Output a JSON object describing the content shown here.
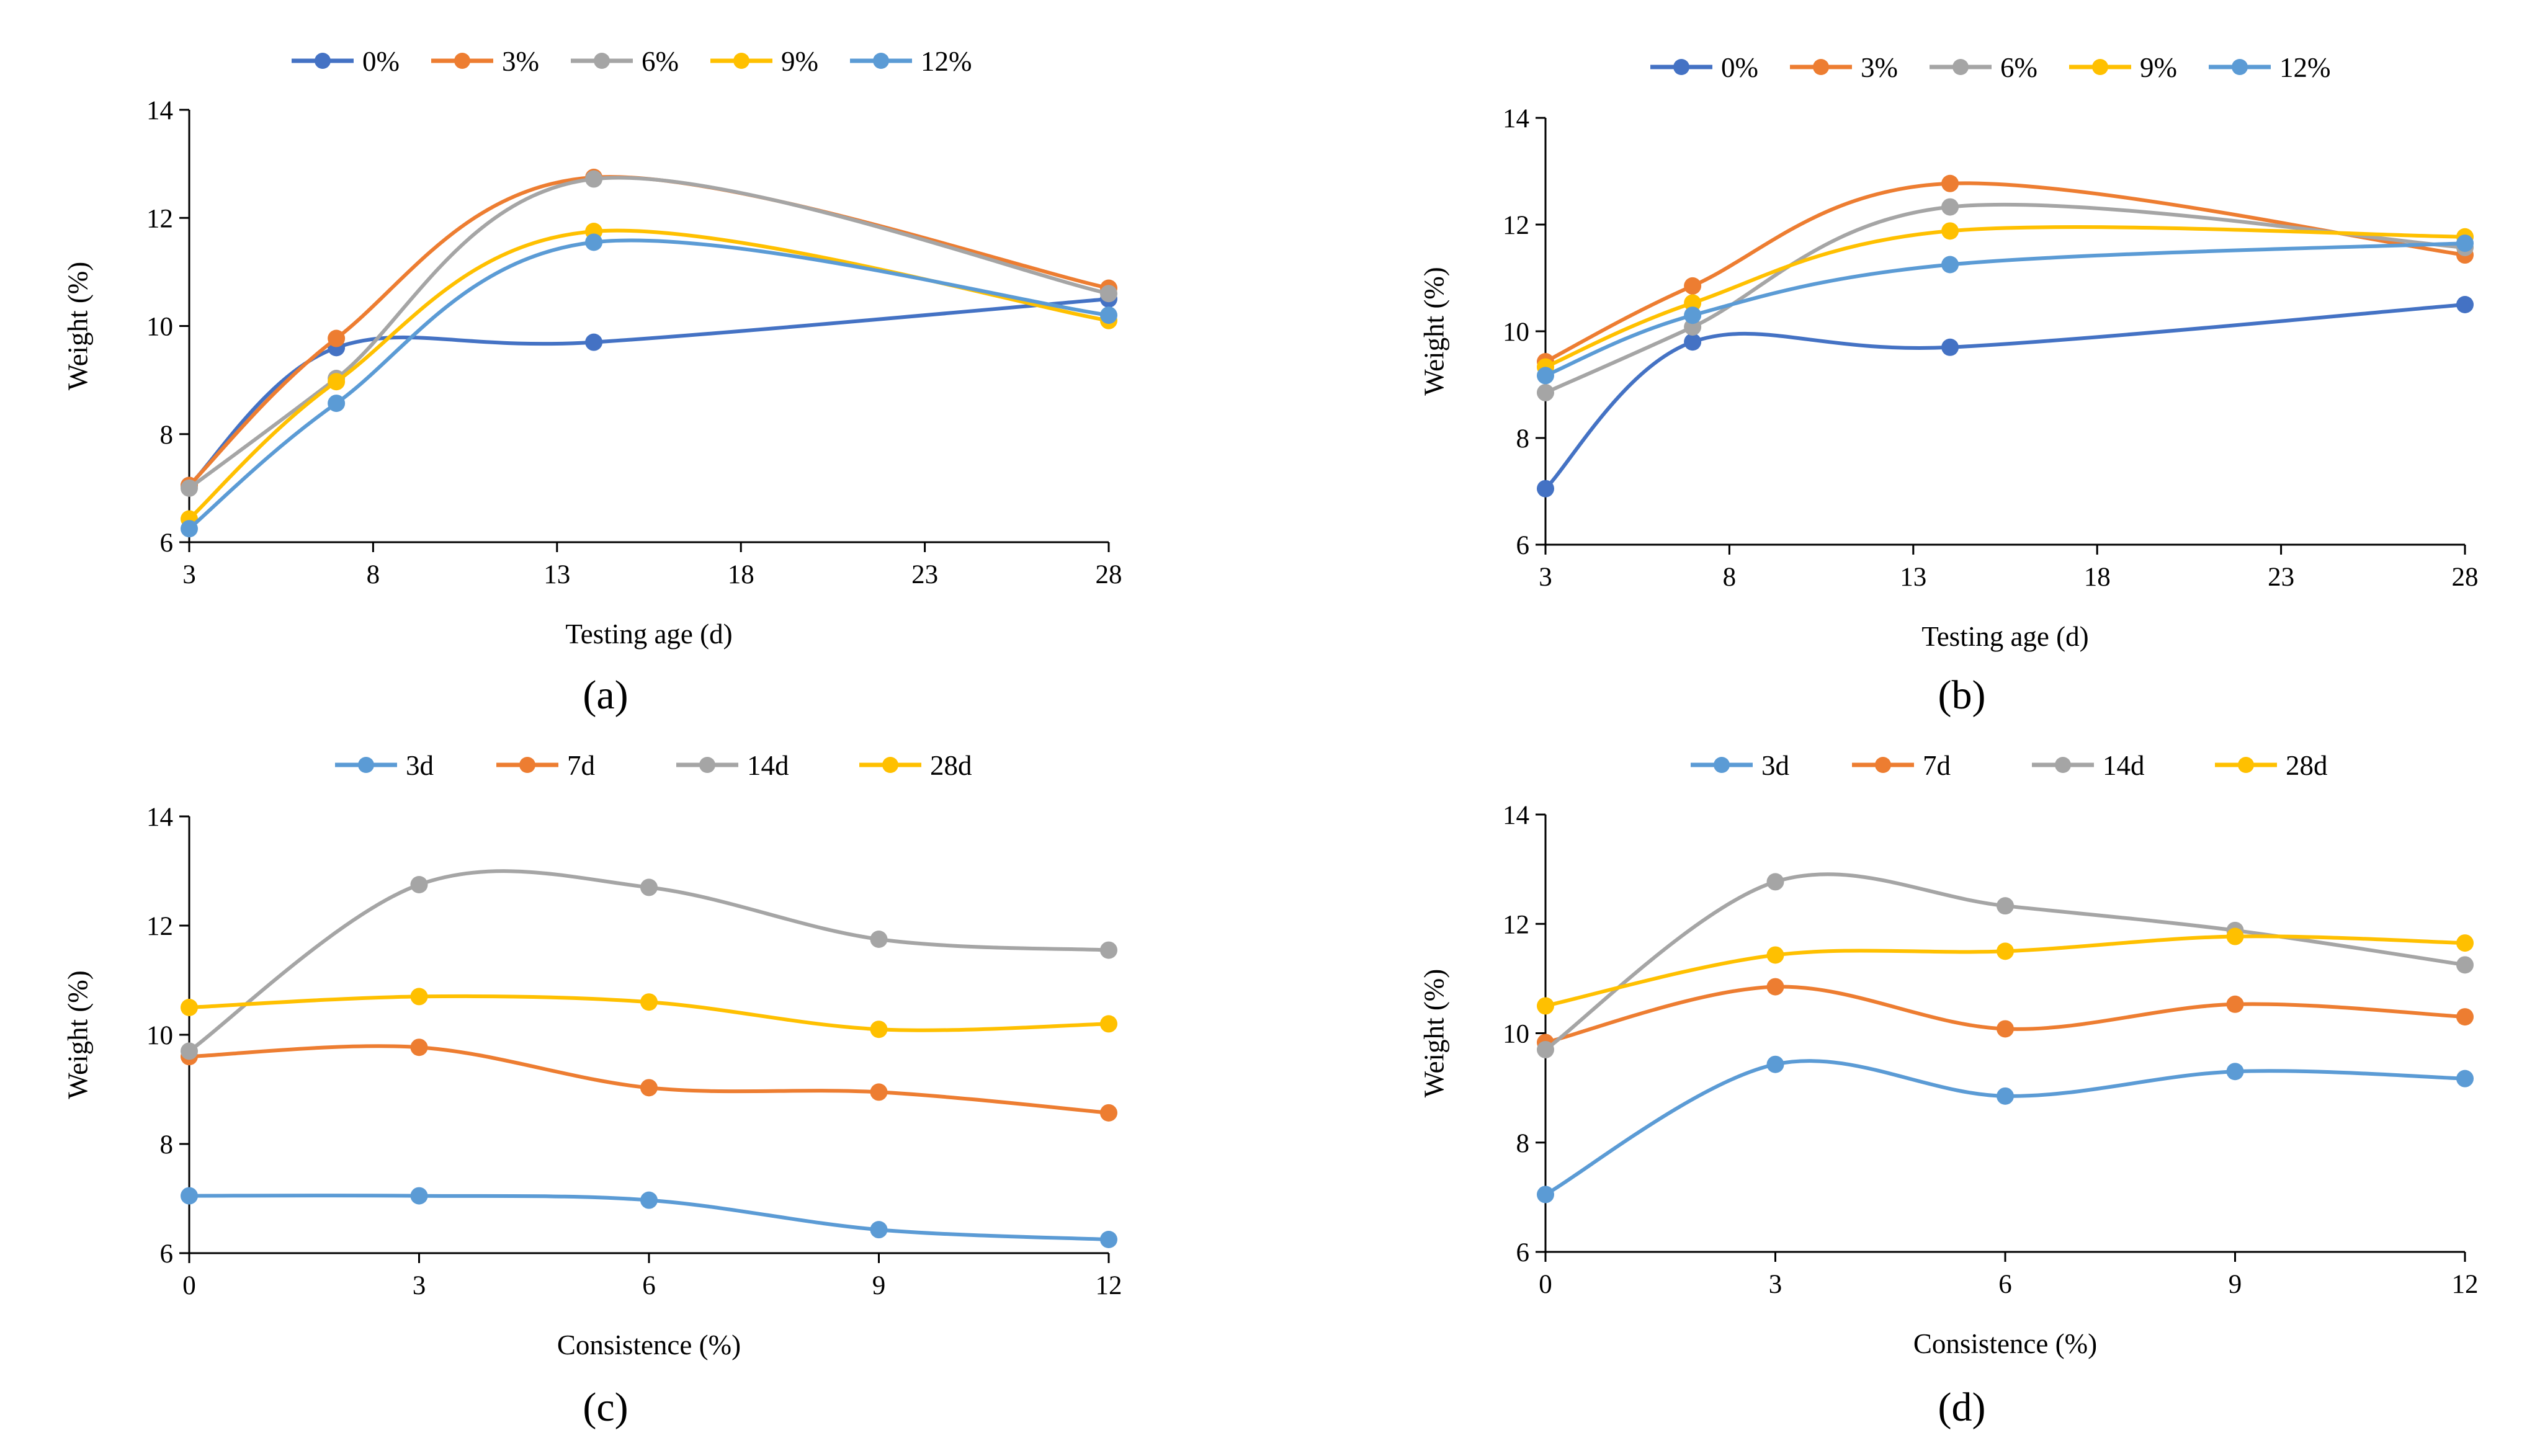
{
  "chart_data": [
    {
      "type": "line",
      "panel_label": "(a)",
      "xlabel": "Testing age (d)",
      "ylabel": "Weight (%)",
      "xlim": [
        3,
        28
      ],
      "ylim": [
        6,
        14
      ],
      "xticks": [
        3,
        8,
        13,
        18,
        23,
        28
      ],
      "yticks": [
        6,
        8,
        10,
        12,
        14
      ],
      "legend_position": "top",
      "x": [
        3,
        7,
        14,
        28
      ],
      "series": [
        {
          "name": "0%",
          "color": "#4472C4",
          "values": [
            7.05,
            9.6,
            9.7,
            10.5
          ]
        },
        {
          "name": "3%",
          "color": "#ED7D31",
          "values": [
            7.05,
            9.77,
            12.75,
            10.7
          ]
        },
        {
          "name": "6%",
          "color": "#A5A5A5",
          "values": [
            7.0,
            9.03,
            12.72,
            10.6
          ]
        },
        {
          "name": "9%",
          "color": "#FFC000",
          "values": [
            6.43,
            8.97,
            11.75,
            10.1
          ]
        },
        {
          "name": "12%",
          "color": "#5B9BD5",
          "values": [
            6.25,
            8.57,
            11.55,
            10.2
          ]
        }
      ]
    },
    {
      "type": "line",
      "panel_label": "(b)",
      "xlabel": "Testing age (d)",
      "ylabel": "Weight (%)",
      "xlim": [
        3,
        28
      ],
      "ylim": [
        6,
        14
      ],
      "xticks": [
        3,
        8,
        13,
        18,
        23,
        28
      ],
      "yticks": [
        6,
        8,
        10,
        12,
        14
      ],
      "legend_position": "top",
      "x": [
        3,
        7,
        14,
        28
      ],
      "series": [
        {
          "name": "0%",
          "color": "#4472C4",
          "values": [
            7.05,
            9.8,
            9.7,
            10.5
          ]
        },
        {
          "name": "3%",
          "color": "#ED7D31",
          "values": [
            9.43,
            10.85,
            12.77,
            11.43
          ]
        },
        {
          "name": "6%",
          "color": "#A5A5A5",
          "values": [
            8.85,
            10.08,
            12.33,
            11.57
          ]
        },
        {
          "name": "9%",
          "color": "#FFC000",
          "values": [
            9.33,
            10.53,
            11.88,
            11.77
          ]
        },
        {
          "name": "12%",
          "color": "#5B9BD5",
          "values": [
            9.17,
            10.3,
            11.25,
            11.65
          ]
        }
      ]
    },
    {
      "type": "line",
      "panel_label": "(c)",
      "xlabel": "Consistence (%)",
      "ylabel": "Weight (%)",
      "xlim": [
        0,
        12
      ],
      "ylim": [
        6,
        14
      ],
      "xticks": [
        0,
        3,
        6,
        9,
        12
      ],
      "yticks": [
        6,
        8,
        10,
        12,
        14
      ],
      "legend_position": "top",
      "x": [
        0,
        3,
        6,
        9,
        12
      ],
      "series": [
        {
          "name": "3d",
          "color": "#5B9BD5",
          "values": [
            7.05,
            7.05,
            6.97,
            6.43,
            6.25
          ]
        },
        {
          "name": "7d",
          "color": "#ED7D31",
          "values": [
            9.6,
            9.77,
            9.03,
            8.95,
            8.57
          ]
        },
        {
          "name": "14d",
          "color": "#A5A5A5",
          "values": [
            9.7,
            12.75,
            12.7,
            11.75,
            11.55
          ]
        },
        {
          "name": "28d",
          "color": "#FFC000",
          "values": [
            10.5,
            10.7,
            10.6,
            10.1,
            10.2
          ]
        }
      ]
    },
    {
      "type": "line",
      "panel_label": "(d)",
      "xlabel": "Consistence (%)",
      "ylabel": "Weight (%)",
      "xlim": [
        0,
        12
      ],
      "ylim": [
        6,
        14
      ],
      "xticks": [
        0,
        3,
        6,
        9,
        12
      ],
      "yticks": [
        6,
        8,
        10,
        12,
        14
      ],
      "legend_position": "top",
      "x": [
        0,
        3,
        6,
        9,
        12
      ],
      "series": [
        {
          "name": "3d",
          "color": "#5B9BD5",
          "values": [
            7.05,
            9.43,
            8.85,
            9.3,
            9.17
          ]
        },
        {
          "name": "7d",
          "color": "#ED7D31",
          "values": [
            9.83,
            10.85,
            10.08,
            10.53,
            10.3
          ]
        },
        {
          "name": "14d",
          "color": "#A5A5A5",
          "values": [
            9.7,
            12.77,
            12.33,
            11.88,
            11.25
          ]
        },
        {
          "name": "28d",
          "color": "#FFC000",
          "values": [
            10.5,
            11.43,
            11.5,
            11.77,
            11.65
          ]
        }
      ]
    }
  ]
}
